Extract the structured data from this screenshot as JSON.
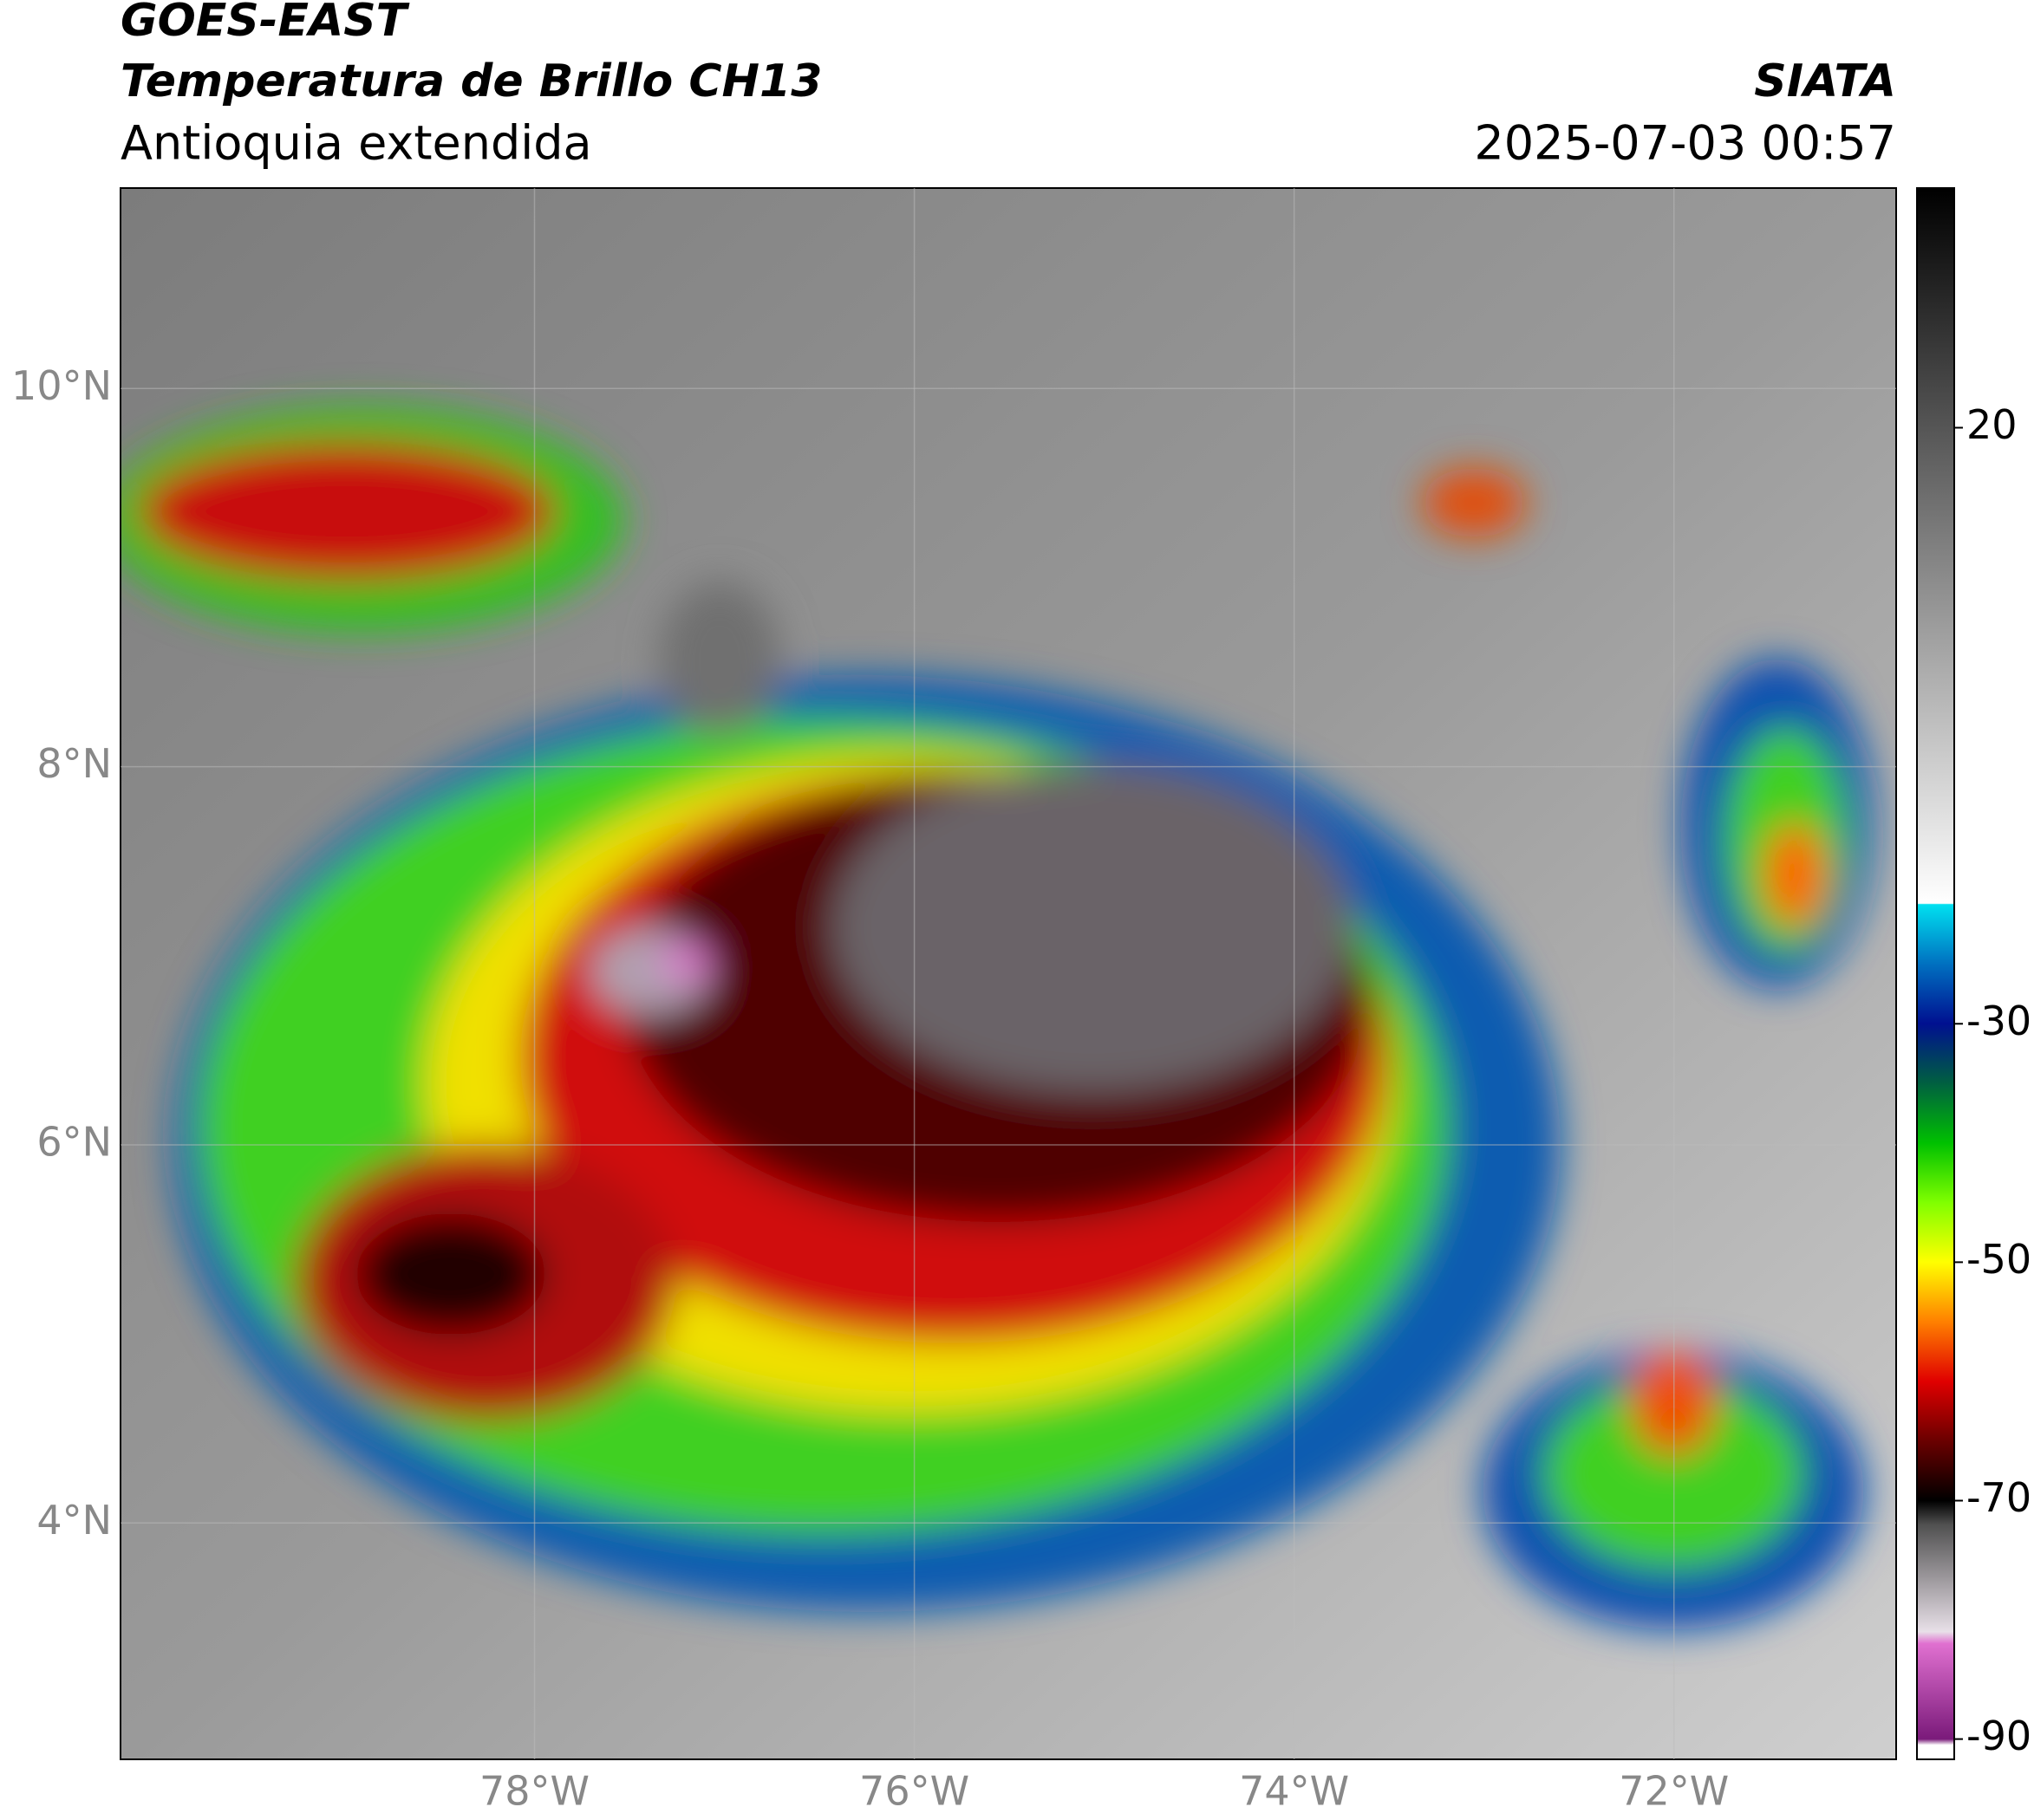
{
  "header": {
    "title": "GOES-EAST",
    "subtitle": "Temperatura de Brillo CH13",
    "region": "Antioquia extendida",
    "organization": "SIATA",
    "timestamp": "2025-07-03 00:57"
  },
  "map": {
    "xlim": [
      -80.18,
      -70.83
    ],
    "ylim": [
      2.75,
      11.06
    ],
    "grid": true,
    "xticks": [
      {
        "value": -78,
        "label": "78°W"
      },
      {
        "value": -76,
        "label": "76°W"
      },
      {
        "value": -74,
        "label": "74°W"
      },
      {
        "value": -72,
        "label": "72°W"
      }
    ],
    "yticks": [
      {
        "value": 4,
        "label": "4°N"
      },
      {
        "value": 6,
        "label": "6°N"
      },
      {
        "value": 8,
        "label": "8°N"
      },
      {
        "value": 10,
        "label": "10°N"
      }
    ]
  },
  "colorbar": {
    "clim": [
      -91.7,
      40.1
    ],
    "ticks": [
      -90,
      -70,
      -50,
      -30,
      20
    ],
    "colormap": [
      {
        "value": -91.7,
        "color": "#ffffff"
      },
      {
        "value": -90.5,
        "color": "#ffffff"
      },
      {
        "value": -90,
        "color": "#7a1a7a"
      },
      {
        "value": -82,
        "color": "#e070d0"
      },
      {
        "value": -81,
        "color": "#e8e0e8"
      },
      {
        "value": -72,
        "color": "#505050"
      },
      {
        "value": -70,
        "color": "#000000"
      },
      {
        "value": -65,
        "color": "#6a0000"
      },
      {
        "value": -60,
        "color": "#e00000"
      },
      {
        "value": -55,
        "color": "#ff8000"
      },
      {
        "value": -50,
        "color": "#ffff00"
      },
      {
        "value": -45,
        "color": "#80ff00"
      },
      {
        "value": -40,
        "color": "#00c000"
      },
      {
        "value": -35,
        "color": "#006040"
      },
      {
        "value": -30,
        "color": "#001090"
      },
      {
        "value": -25,
        "color": "#0070c0"
      },
      {
        "value": -20,
        "color": "#00e0f0"
      },
      {
        "value": -19.9,
        "color": "#ffffff"
      },
      {
        "value": 40.1,
        "color": "#000000"
      }
    ]
  }
}
